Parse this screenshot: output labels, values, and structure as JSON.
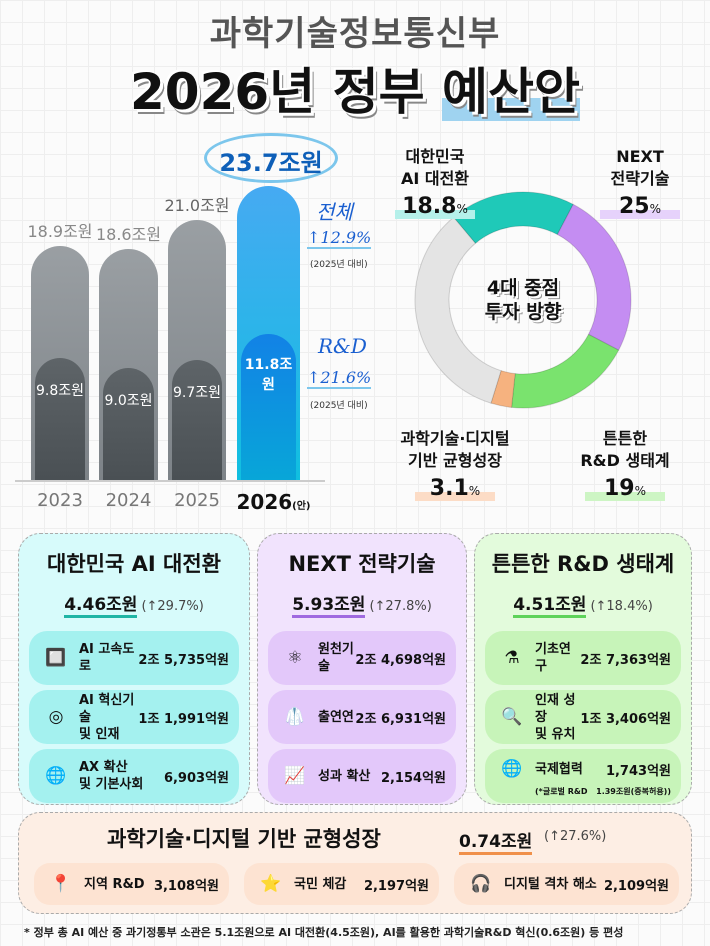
{
  "header": {
    "ministry": "과학기술정보통신부",
    "title_pre": "2026년 정부 ",
    "title_hl": "예산안"
  },
  "chart_data": [
    {
      "type": "bar",
      "categories": [
        "2023",
        "2024",
        "2025",
        "2026(안)"
      ],
      "series": [
        {
          "name": "전체",
          "values": [
            18.9,
            18.6,
            21.0,
            23.7
          ]
        },
        {
          "name": "R&D",
          "values": [
            9.8,
            9.0,
            9.7,
            11.8
          ]
        }
      ],
      "unit": "조원",
      "total_labels": [
        "18.9조원",
        "18.6조원",
        "21.0조원",
        "23.7조원"
      ],
      "rd_labels": [
        "9.8조원",
        "9.0조원",
        "9.7조원",
        "11.8조원"
      ],
      "year_labels": [
        "2023",
        "2024",
        "2025",
        "2026"
      ],
      "year_suffix": "(안)",
      "annotations": {
        "total_title": "전체",
        "total_change": "12.9%",
        "rd_title": "R&D",
        "rd_change": "21.6%",
        "basis": "(2025년 대비)"
      },
      "colors": {
        "past_total": "#9a9fa3",
        "past_rd": "#5e6468",
        "current_total": "#3ab6ef",
        "current_rd": "#1282e6"
      }
    },
    {
      "type": "pie",
      "center_label": [
        "4대 중점",
        "투자 방향"
      ],
      "slices": [
        {
          "label": [
            "대한민국",
            "AI 대전환"
          ],
          "value": 18.8,
          "color": "#1fc9b8"
        },
        {
          "label": [
            "NEXT",
            "전략기술"
          ],
          "value": 25.0,
          "color": "#c48df2"
        },
        {
          "label": [
            "튼튼한",
            "R&D 생태계"
          ],
          "value": 19.0,
          "color": "#7ae36e"
        },
        {
          "label": [
            "과학기술·디지털",
            "기반 균형성장"
          ],
          "value": 3.1,
          "color": "#f6b27f"
        }
      ],
      "remainder_color": "#e4e4e4",
      "pct_suffix": "%"
    }
  ],
  "panels": [
    {
      "title": "대한민국 AI 대전환",
      "total": "4.46조원",
      "change": "(↑29.7%)",
      "bg": "#d7fbfb",
      "item_bg": "#a4f1ef",
      "line": "#1fb5a5",
      "items": [
        {
          "icon": "ai-chip",
          "name": "AI 고속도로",
          "value": "2조 5,735억원"
        },
        {
          "icon": "ai-camera",
          "name": "AI 혁신기술\n및 인재",
          "value": "1조 1,991억원"
        },
        {
          "icon": "globe",
          "name": "AX 확산\n및 기본사회",
          "value": "6,903억원"
        }
      ]
    },
    {
      "title": "NEXT 전략기술",
      "total": "5.93조원",
      "change": "(↑27.8%)",
      "bg": "#f1e3fd",
      "item_bg": "#e3c8fa",
      "line": "#a06ae0",
      "items": [
        {
          "icon": "atom-document",
          "name": "원천기술",
          "value": "2조 4,698억원"
        },
        {
          "icon": "lab-coat",
          "name": "출연연",
          "value": "2조 6,931억원"
        },
        {
          "icon": "growth-chart",
          "name": "성과 확산",
          "value": "2,154억원"
        }
      ]
    },
    {
      "title": "튼튼한 R&D 생태계",
      "total": "4.51조원",
      "change": "(↑18.4%)",
      "bg": "#e3fbdc",
      "item_bg": "#c7f4b9",
      "line": "#5ed35a",
      "items": [
        {
          "icon": "flask",
          "name": "기초연구",
          "value": "2조 7,363억원"
        },
        {
          "icon": "talent-search",
          "name": "인재 성장\n및 유치",
          "value": "1조 3,406억원"
        },
        {
          "icon": "network-globe",
          "name": "국제협력",
          "value": "1,743억원",
          "note_l": "(*글로벌 R&D",
          "note_r": "1.39조원(중복허용))"
        }
      ]
    }
  ],
  "bottom": {
    "title": "과학기술·디지털 기반 균형성장",
    "total": "0.74조원",
    "change": "(↑27.6%)",
    "line": "#f0904a",
    "items": [
      {
        "icon": "map-pin",
        "name": "지역 R&D",
        "value": "3,108억원"
      },
      {
        "icon": "stars",
        "name": "국민 체감",
        "value": "2,197억원"
      },
      {
        "icon": "headset-person",
        "name": "디지털 격차 해소",
        "value": "2,109억원"
      }
    ]
  },
  "footnote": "* 정부 총 AI 예산 중 과기정통부 소관은 5.1조원으로 AI 대전환(4.5조원), AI를 활용한 과학기술R&D 혁신(0.6조원) 등 편성"
}
